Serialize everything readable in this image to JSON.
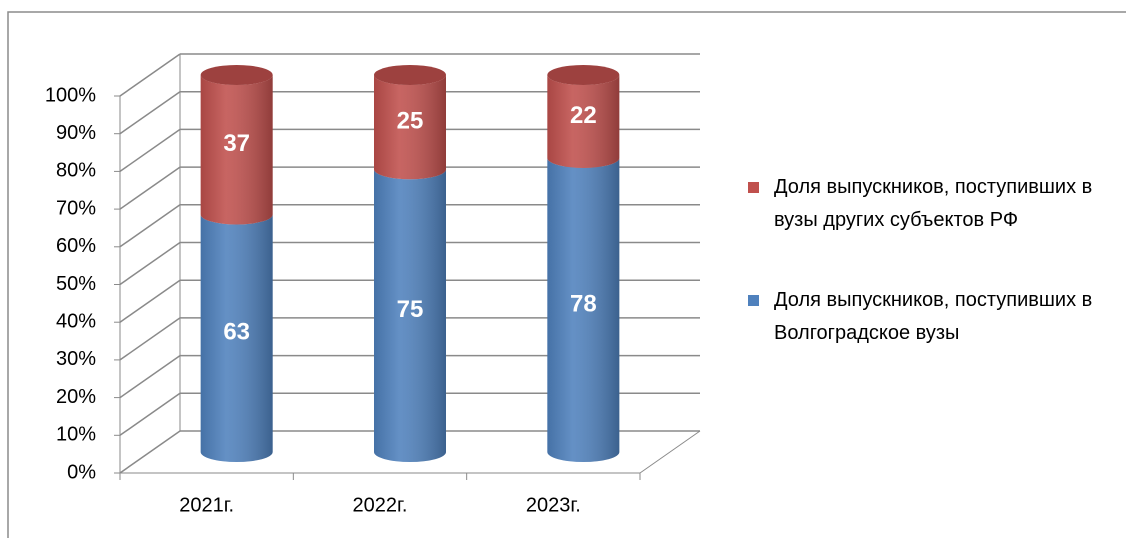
{
  "chart_data": {
    "type": "bar3d_stacked",
    "categories": [
      "2021г.",
      "2022г.",
      "2023г."
    ],
    "series": [
      {
        "name": "Доля выпускников, поступивших в Волгоградское вузы",
        "color": "#4f81bd",
        "values": [
          63,
          75,
          78
        ]
      },
      {
        "name": "Доля выпускников, поступивших в вузы других субъектов РФ",
        "color": "#c0504d",
        "values": [
          37,
          25,
          22
        ]
      }
    ],
    "ylim": [
      0,
      100
    ],
    "yticks": [
      {
        "value": 0,
        "label": "0%"
      },
      {
        "value": 10,
        "label": "10%"
      },
      {
        "value": 20,
        "label": "20%"
      },
      {
        "value": 30,
        "label": "30%"
      },
      {
        "value": 40,
        "label": "40%"
      },
      {
        "value": 50,
        "label": "50%"
      },
      {
        "value": 60,
        "label": "60%"
      },
      {
        "value": 70,
        "label": "70%"
      },
      {
        "value": 80,
        "label": "80%"
      },
      {
        "value": 90,
        "label": "90%"
      },
      {
        "value": 100,
        "label": "100%"
      }
    ],
    "grid": true,
    "legend": "right"
  }
}
